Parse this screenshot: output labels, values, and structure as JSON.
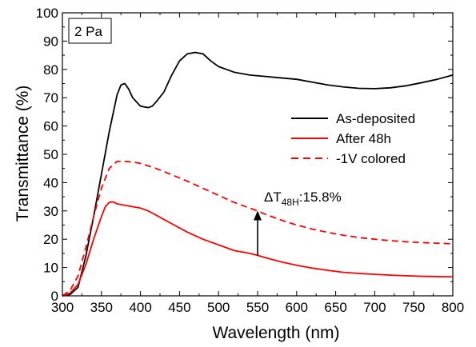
{
  "chart_data": {
    "type": "line",
    "panel_label": "2 Pa",
    "xlabel": "Wavelength (nm)",
    "ylabel": "Transmittance (%)",
    "xlim": [
      300,
      800
    ],
    "ylim": [
      0,
      100
    ],
    "x_ticks": [
      300,
      350,
      400,
      450,
      500,
      550,
      600,
      650,
      700,
      750,
      800
    ],
    "y_ticks": [
      0,
      10,
      20,
      30,
      40,
      50,
      60,
      70,
      80,
      90,
      100
    ],
    "grid": false,
    "legend_position": "right",
    "series": [
      {
        "name": "As-deposited",
        "color": "#000000",
        "dash": "solid",
        "x": [
          300,
          310,
          320,
          330,
          340,
          350,
          360,
          370,
          375,
          380,
          385,
          390,
          400,
          410,
          415,
          420,
          430,
          440,
          450,
          460,
          470,
          480,
          490,
          500,
          520,
          540,
          560,
          580,
          600,
          620,
          640,
          660,
          680,
          700,
          720,
          740,
          760,
          780,
          800
        ],
        "y": [
          0,
          0.5,
          3,
          14,
          28,
          43,
          58,
          71,
          74.5,
          75,
          73,
          70,
          67,
          66.5,
          67,
          68.5,
          72,
          78,
          83,
          85.5,
          86,
          85.5,
          83,
          81,
          79,
          78,
          77.5,
          77,
          76.5,
          75.5,
          74.5,
          73.8,
          73.3,
          73.2,
          73.5,
          74.2,
          75.3,
          76.5,
          78
        ]
      },
      {
        "name": "After 48h",
        "color": "#ff0000",
        "dash": "solid",
        "x": [
          300,
          310,
          320,
          330,
          340,
          350,
          355,
          360,
          365,
          370,
          380,
          390,
          400,
          410,
          420,
          430,
          440,
          450,
          460,
          480,
          500,
          520,
          540,
          550,
          560,
          580,
          600,
          620,
          640,
          660,
          680,
          700,
          720,
          740,
          760,
          780,
          800
        ],
        "y": [
          0,
          1,
          4,
          11,
          20,
          28,
          31.5,
          33,
          33.2,
          32.5,
          32,
          31.5,
          31,
          30,
          28.5,
          27,
          25.5,
          24,
          22.5,
          20,
          18,
          16,
          15,
          14.3,
          13.5,
          12,
          10.8,
          9.8,
          9,
          8.3,
          7.9,
          7.6,
          7.3,
          7.1,
          6.9,
          6.8,
          6.7
        ]
      },
      {
        "name": "-1V colored",
        "color": "#ff0000",
        "dash": "dashed",
        "x": [
          300,
          310,
          320,
          330,
          340,
          350,
          360,
          370,
          380,
          390,
          400,
          420,
          440,
          460,
          480,
          500,
          520,
          540,
          550,
          560,
          580,
          600,
          620,
          640,
          660,
          680,
          700,
          720,
          740,
          760,
          780,
          800
        ],
        "y": [
          0,
          2,
          7,
          17,
          28,
          38,
          45,
          47.5,
          47.5,
          47.3,
          46.8,
          45,
          42.8,
          40.5,
          38,
          35.5,
          33,
          31,
          30,
          28.8,
          26.8,
          25,
          23.6,
          22.4,
          21.4,
          20.6,
          20,
          19.5,
          19.1,
          18.8,
          18.6,
          18.4
        ]
      }
    ],
    "annotation": {
      "symbol": "ΔT",
      "subscript": "48H",
      "suffix": ":15.8%",
      "arrow_x": 550,
      "arrow_from_y": 14.3,
      "arrow_to_y": 30.1
    }
  }
}
